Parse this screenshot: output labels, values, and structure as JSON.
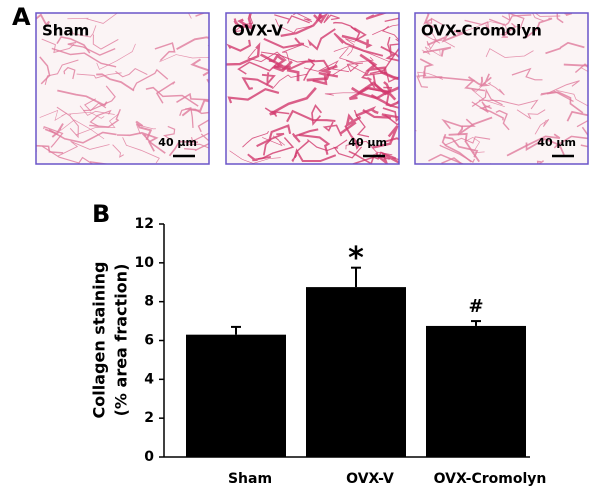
{
  "figure": {
    "panel_label": "A",
    "images": [
      {
        "label": "Sham",
        "scale_bar": "40 µm"
      },
      {
        "label": "OVX-V",
        "scale_bar": "40 µm"
      },
      {
        "label": "OVX-Cromolyn",
        "scale_bar": "40 µm"
      }
    ]
  },
  "chart_data": {
    "type": "bar",
    "panel_label": "B",
    "ylabel": [
      "Collagen staining",
      "(% area fraction)"
    ],
    "categories": [
      "Sham",
      "OVX-V",
      "OVX-Cromolyn"
    ],
    "values": [
      6.3,
      8.75,
      6.75
    ],
    "errors": [
      0.4,
      1.0,
      0.25
    ],
    "color": "#000000",
    "annotations": [
      {
        "text": "*",
        "category": "OVX-V"
      },
      {
        "text": "#",
        "category": "OVX-Cromolyn"
      }
    ],
    "ylim": [
      0,
      12
    ],
    "yticks": [
      0,
      2,
      4,
      6,
      8,
      10,
      12
    ]
  }
}
